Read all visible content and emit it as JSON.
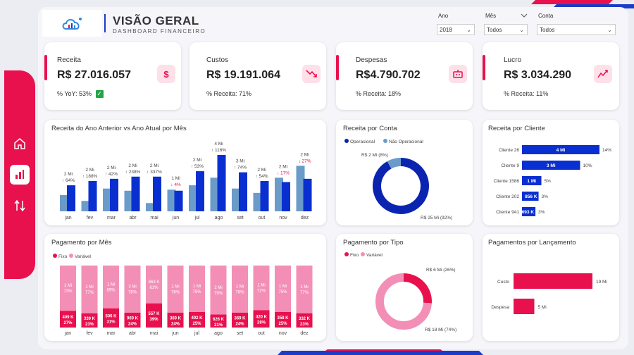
{
  "header": {
    "title": "VISÃO GERAL",
    "subtitle": "DASHBOARD FINANCEIRO"
  },
  "filters": [
    {
      "label": "Ano",
      "value": "2018"
    },
    {
      "label": "Mês",
      "value": "Todos"
    },
    {
      "label": "Conta",
      "value": "Todos"
    }
  ],
  "kpis": [
    {
      "label": "Receita",
      "value": "R$ 27.016.057",
      "sub": "% YoY: 53%",
      "icon": "dollar-icon"
    },
    {
      "label": "Custos",
      "value": "R$ 19.191.064",
      "sub": "% Receita: 71%",
      "icon": "trend-down-icon"
    },
    {
      "label": "Despesas",
      "value": "R$4.790.702",
      "sub": "% Receita: 18%",
      "icon": "robot-icon"
    },
    {
      "label": "Lucro",
      "value": "R$ 3.034.290",
      "sub": "% Receita: 11%",
      "icon": "chart-up-icon"
    }
  ],
  "colors": {
    "accent": "#e8114e",
    "blue": "#0a2fd0",
    "light_blue": "#6a9bc9",
    "pink_light": "#f38fb6",
    "navy": "#0b24b0"
  },
  "chart_data": [
    {
      "id": "receita_ano",
      "type": "bar",
      "title": "Receita do Ano Anterior vs Ano Atual por Mês",
      "categories": [
        "jan",
        "fev",
        "mar",
        "abr",
        "mai",
        "jun",
        "jul",
        "ago",
        "set",
        "out",
        "nov",
        "dez"
      ],
      "series": [
        {
          "values": [
            0.75,
            0.48,
            1.05,
            0.95,
            0.38,
            1.0,
            1.2,
            1.55,
            1.05,
            0.85,
            1.55,
            2.1
          ]
        },
        {
          "values": [
            1.2,
            1.4,
            1.5,
            1.6,
            1.6,
            0.95,
            1.85,
            2.6,
            1.8,
            1.4,
            1.35,
            1.5
          ]
        }
      ],
      "value_labels": [
        "2 Mi",
        "2 Mi",
        "2 Mi",
        "2 Mi",
        "2 Mi",
        "1 Mi",
        "2 Mi",
        "4 Mi",
        "3 Mi",
        "2 Mi",
        "2 Mi",
        "2 Mi"
      ],
      "pct_labels": [
        "64%",
        "188%",
        "42%",
        "238%",
        "337%",
        "4%",
        "53%",
        "116%",
        "74%",
        "54%",
        "17%",
        "27%"
      ],
      "pct_dir": [
        "up",
        "up",
        "up",
        "up",
        "up",
        "down",
        "up",
        "up",
        "up",
        "up",
        "down",
        "down"
      ]
    },
    {
      "id": "receita_conta",
      "type": "pie",
      "title": "Receita por Conta",
      "legend": [
        "Operacional",
        "Não Operacional"
      ],
      "slices": [
        {
          "label": "R$ 25 Mi (92%)",
          "value": 92
        },
        {
          "label": "R$ 2 Mi (8%)",
          "value": 8
        }
      ]
    },
    {
      "id": "receita_cliente",
      "type": "bar",
      "title": "Receita por Cliente",
      "categories": [
        "Cliente 26",
        "Cliente 9",
        "Cliente 1586",
        "Cliente 202",
        "Cliente 941"
      ],
      "values": [
        4.0,
        3.0,
        1.0,
        0.856,
        0.693
      ],
      "value_labels": [
        "4 Mi",
        "3 Mi",
        "1 Mi",
        "856 K",
        "693 K"
      ],
      "pct_labels": [
        "14%",
        "10%",
        "5%",
        "3%",
        "3%"
      ]
    },
    {
      "id": "pagamento_mes",
      "type": "bar",
      "title": "Pagamento por Mês",
      "legend": [
        "Fixo",
        "Variável"
      ],
      "categories": [
        "jan",
        "fev",
        "mar",
        "abr",
        "mai",
        "jun",
        "jul",
        "ago",
        "set",
        "out",
        "nov",
        "dez"
      ],
      "fixo_pct": [
        27,
        23,
        31,
        24,
        39,
        24,
        25,
        21,
        24,
        28,
        25,
        23
      ],
      "fixo_labels": [
        "409 K",
        "339 K",
        "506 K",
        "969 K",
        "557 K",
        "369 K",
        "492 K",
        "626 K",
        "369 K",
        "420 K",
        "358 K",
        "332 K"
      ],
      "var_labels": [
        "1 Mi",
        "1 Mi",
        "1 Mi",
        "3 Mi",
        "863 K",
        "1 Mi",
        "1 Mi",
        "2 Mi",
        "1 Mi",
        "1 Mi",
        "1 Mi",
        "1 Mi"
      ],
      "var_pct": [
        73,
        77,
        69,
        76,
        61,
        76,
        75,
        79,
        76,
        72,
        75,
        77
      ]
    },
    {
      "id": "pagamento_tipo",
      "type": "pie",
      "title": "Pagamento por Tipo",
      "legend": [
        "Fixo",
        "Variável"
      ],
      "slices": [
        {
          "label": "R$ 6 Mi (26%)",
          "value": 26
        },
        {
          "label": "R$ 18 Mi (74%)",
          "value": 74
        }
      ]
    },
    {
      "id": "pagamentos_lancamento",
      "type": "bar",
      "title": "Pagamentos por Lançamento",
      "categories": [
        "Custo",
        "Despesa"
      ],
      "values": [
        19,
        5
      ],
      "value_labels": [
        "19 Mi",
        "5 Mi"
      ]
    }
  ]
}
